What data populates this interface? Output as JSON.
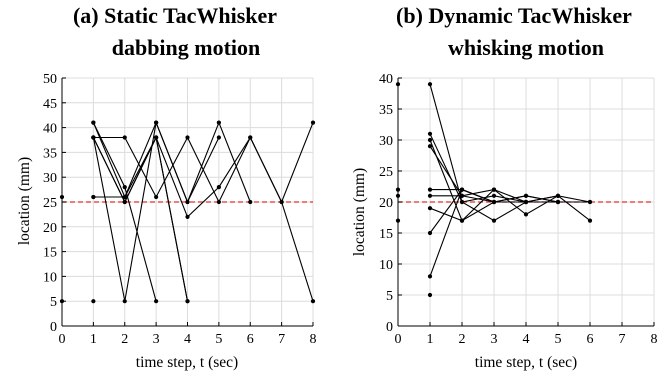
{
  "chart_data": [
    {
      "type": "line",
      "title_lines": [
        "(a) Static TacWhisker",
        "dabbing motion"
      ],
      "xlabel": "time step, t (sec)",
      "ylabel": "location (mm)",
      "xlim": [
        0,
        8
      ],
      "ylim": [
        0,
        50
      ],
      "xticks": [
        0,
        1,
        2,
        3,
        4,
        5,
        6,
        7,
        8
      ],
      "yticks": [
        0,
        5,
        10,
        15,
        20,
        25,
        30,
        35,
        40,
        45,
        50
      ],
      "grid": true,
      "reference_line": {
        "y": 25,
        "color": "#e03030",
        "style": "dashed"
      },
      "series": [
        {
          "points": [
            [
              1,
              41
            ],
            [
              2,
              26
            ],
            [
              3,
              38
            ],
            [
              4,
              22
            ],
            [
              5,
              28
            ],
            [
              6,
              38
            ],
            [
              7,
              25
            ],
            [
              8,
              41
            ]
          ]
        },
        {
          "points": [
            [
              1,
              38
            ],
            [
              2,
              38
            ],
            [
              3,
              26
            ],
            [
              4,
              38
            ],
            [
              5,
              25
            ],
            [
              6,
              38
            ],
            [
              7,
              25
            ],
            [
              8,
              5
            ]
          ]
        },
        {
          "points": [
            [
              1,
              41
            ],
            [
              2,
              28
            ],
            [
              3,
              5
            ]
          ]
        },
        {
          "points": [
            [
              1,
              38
            ],
            [
              2,
              5
            ],
            [
              3,
              41
            ],
            [
              4,
              25
            ],
            [
              5,
              38
            ]
          ]
        },
        {
          "points": [
            [
              1,
              38
            ],
            [
              2,
              25
            ],
            [
              3,
              38
            ],
            [
              4,
              5
            ]
          ]
        },
        {
          "points": [
            [
              1,
              26
            ],
            [
              2,
              26
            ],
            [
              3,
              41
            ],
            [
              4,
              25
            ],
            [
              5,
              41
            ],
            [
              6,
              25
            ]
          ]
        },
        {
          "points": [
            [
              1,
              38
            ],
            [
              2,
              25
            ],
            [
              3,
              38
            ],
            [
              4,
              5
            ]
          ]
        }
      ],
      "isolated_points": [
        [
          0,
          26
        ],
        [
          0,
          5
        ],
        [
          1,
          5
        ],
        [
          1,
          26
        ]
      ]
    },
    {
      "type": "line",
      "title_lines": [
        "(b) Dynamic TacWhisker",
        "whisking motion"
      ],
      "xlabel": "time step, t (sec)",
      "ylabel": "location (mm)",
      "xlim": [
        0,
        8
      ],
      "ylim": [
        0,
        40
      ],
      "xticks": [
        0,
        1,
        2,
        3,
        4,
        5,
        6,
        7,
        8
      ],
      "yticks": [
        0,
        5,
        10,
        15,
        20,
        25,
        30,
        35,
        40
      ],
      "grid": true,
      "reference_line": {
        "y": 20,
        "color": "#e03030",
        "style": "dashed"
      },
      "series": [
        {
          "points": [
            [
              1,
              39
            ],
            [
              2,
              20
            ],
            [
              3,
              21
            ],
            [
              4,
              20
            ],
            [
              5,
              20
            ]
          ]
        },
        {
          "points": [
            [
              1,
              31
            ],
            [
              2,
              20
            ],
            [
              3,
              17
            ],
            [
              4,
              20
            ],
            [
              5,
              21
            ],
            [
              6,
              20
            ]
          ]
        },
        {
          "points": [
            [
              1,
              30
            ],
            [
              2,
              17
            ],
            [
              3,
              22
            ],
            [
              4,
              18
            ],
            [
              5,
              21
            ],
            [
              6,
              17
            ]
          ]
        },
        {
          "points": [
            [
              1,
              29
            ],
            [
              2,
              21
            ],
            [
              3,
              20
            ],
            [
              4,
              21
            ],
            [
              5,
              20
            ],
            [
              6,
              20
            ]
          ]
        },
        {
          "points": [
            [
              1,
              22
            ],
            [
              2,
              22
            ],
            [
              3,
              20
            ],
            [
              4,
              20
            ],
            [
              5,
              21
            ]
          ]
        },
        {
          "points": [
            [
              1,
              21
            ],
            [
              2,
              21
            ],
            [
              3,
              22
            ],
            [
              4,
              20
            ]
          ]
        },
        {
          "points": [
            [
              1,
              19
            ],
            [
              2,
              17
            ],
            [
              3,
              20
            ],
            [
              4,
              20
            ],
            [
              5,
              20
            ]
          ]
        },
        {
          "points": [
            [
              1,
              15
            ],
            [
              2,
              22
            ],
            [
              3,
              20
            ]
          ]
        },
        {
          "points": [
            [
              1,
              8
            ],
            [
              2,
              22
            ],
            [
              3,
              20
            ],
            [
              4,
              21
            ],
            [
              5,
              20
            ]
          ]
        }
      ],
      "isolated_points": [
        [
          0,
          39
        ],
        [
          0,
          22
        ],
        [
          0,
          21
        ],
        [
          0,
          17
        ],
        [
          1,
          5
        ]
      ]
    }
  ]
}
